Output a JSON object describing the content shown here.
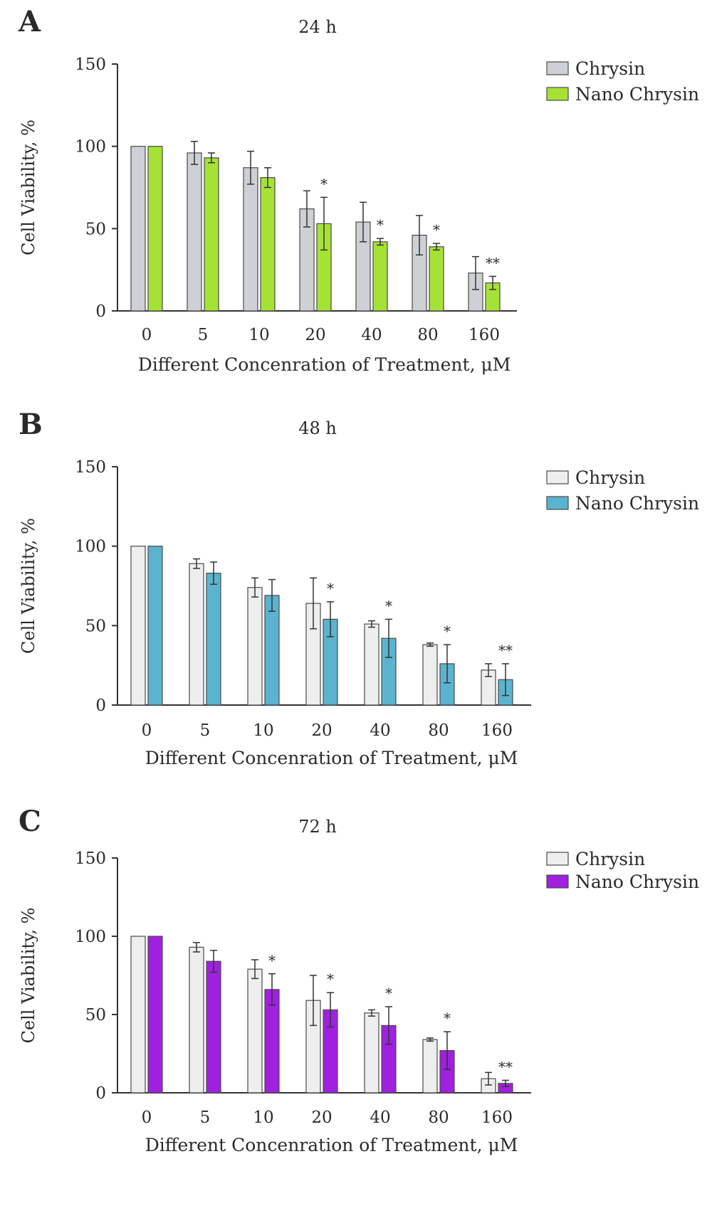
{
  "chart_data": [
    {
      "type": "bar",
      "panel_label": "A",
      "title": "24 h",
      "ylabel": "Cell Viability, %",
      "xlabel": "Different Concenration of Treatment, μM",
      "ylim": [
        0,
        150
      ],
      "yticks": [
        0,
        50,
        100,
        150
      ],
      "categories": [
        "0",
        "5",
        "10",
        "20",
        "40",
        "80",
        "160"
      ],
      "legend_position": "top-right",
      "series": [
        {
          "name": "Chrysin",
          "color": "#cdd0d4",
          "values": [
            100,
            96,
            87,
            62,
            54,
            46,
            23
          ],
          "errors": [
            0,
            7,
            10,
            11,
            12,
            12,
            10
          ]
        },
        {
          "name": "Nano Chrysin",
          "color": "#a6e236",
          "values": [
            100,
            93,
            81,
            53,
            42,
            39,
            17
          ],
          "errors": [
            0,
            3,
            6,
            16,
            2,
            2,
            4
          ]
        }
      ],
      "significance": [
        "",
        "",
        "",
        "*",
        "*",
        "*",
        "**"
      ]
    },
    {
      "type": "bar",
      "panel_label": "B",
      "title": "48 h",
      "ylabel": "Cell Viability, %",
      "xlabel": "Different Concenration of Treatment, μM",
      "ylim": [
        0,
        150
      ],
      "yticks": [
        0,
        50,
        100,
        150
      ],
      "categories": [
        "0",
        "5",
        "10",
        "20",
        "40",
        "80",
        "160"
      ],
      "legend_position": "top-right",
      "series": [
        {
          "name": "Chrysin",
          "color": "#eeeeee",
          "values": [
            100,
            89,
            74,
            64,
            51,
            38,
            22
          ],
          "errors": [
            0,
            3,
            6,
            16,
            2,
            1,
            4
          ]
        },
        {
          "name": "Nano Chrysin",
          "color": "#5bb4cf",
          "values": [
            100,
            83,
            69,
            54,
            42,
            26,
            16
          ],
          "errors": [
            0,
            7,
            10,
            11,
            12,
            12,
            10
          ]
        }
      ],
      "significance": [
        "",
        "",
        "",
        "*",
        "*",
        "*",
        "**"
      ]
    },
    {
      "type": "bar",
      "panel_label": "C",
      "title": "72 h",
      "ylabel": "Cell Viability, %",
      "xlabel": "Different Concenration of Treatment, μM",
      "ylim": [
        0,
        150
      ],
      "yticks": [
        0,
        50,
        100,
        150
      ],
      "categories": [
        "0",
        "5",
        "10",
        "20",
        "40",
        "80",
        "160"
      ],
      "legend_position": "top-right",
      "series": [
        {
          "name": "Chrysin",
          "color": "#eeeeee",
          "values": [
            100,
            93,
            79,
            59,
            51,
            34,
            9
          ],
          "errors": [
            0,
            3,
            6,
            16,
            2,
            1,
            4
          ]
        },
        {
          "name": "Nano Chrysin",
          "color": "#a020e0",
          "values": [
            100,
            84,
            66,
            53,
            43,
            27,
            6
          ],
          "errors": [
            0,
            7,
            10,
            11,
            12,
            12,
            2
          ]
        }
      ],
      "significance": [
        "",
        "",
        "*",
        "*",
        "*",
        "*",
        "**"
      ]
    }
  ]
}
